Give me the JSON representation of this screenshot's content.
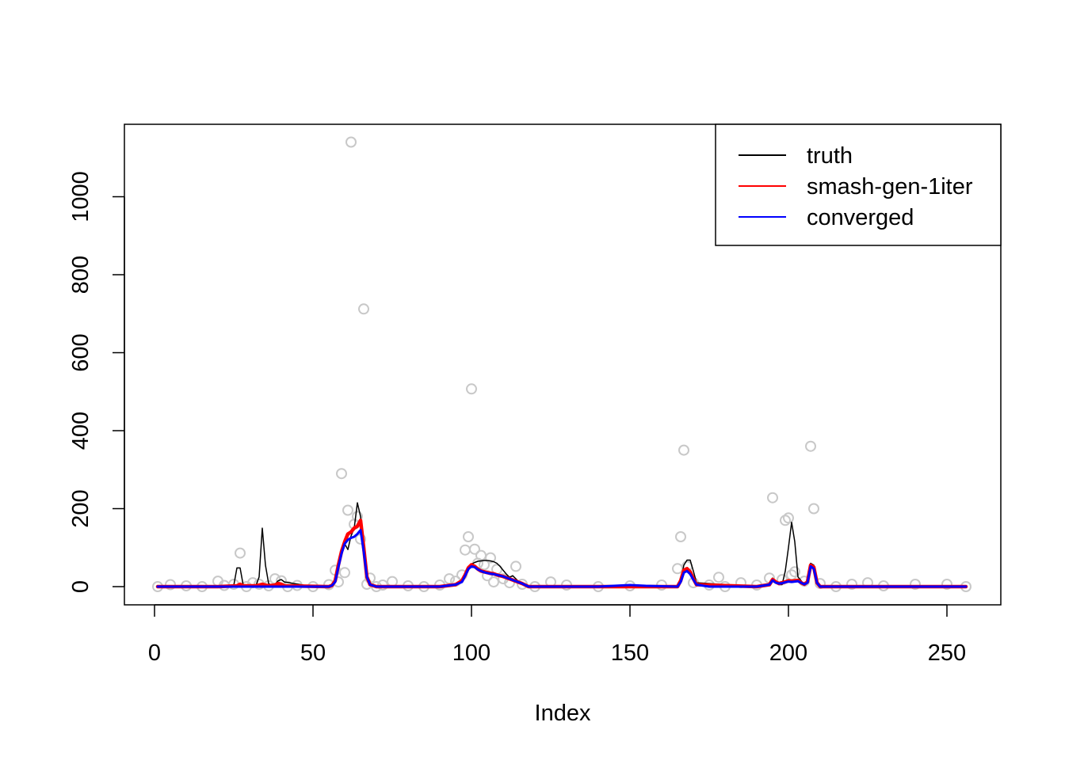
{
  "chart_data": {
    "type": "line",
    "title": "",
    "xlabel": "Index",
    "ylabel": "",
    "xlim": [
      1,
      256
    ],
    "ylim": [
      0,
      1140
    ],
    "x_ticks": [
      0,
      50,
      100,
      150,
      200,
      250
    ],
    "y_ticks": [
      0,
      200,
      400,
      600,
      800,
      1000
    ],
    "grid": false,
    "legend": {
      "position": "top-right",
      "entries": [
        {
          "label": "truth",
          "color": "#000000"
        },
        {
          "label": "smash-gen-1iter",
          "color": "#ff0000"
        },
        {
          "label": "converged",
          "color": "#0000ff"
        }
      ]
    },
    "points": {
      "name": "observations",
      "color": "#c8c8c8",
      "x": [
        1,
        5,
        10,
        15,
        20,
        22,
        25,
        27,
        29,
        31,
        33,
        36,
        38,
        40,
        42,
        45,
        50,
        55,
        57,
        58,
        59,
        60,
        61,
        62,
        63,
        64,
        65,
        66,
        67,
        68,
        70,
        72,
        75,
        80,
        85,
        90,
        93,
        95,
        97,
        98,
        99,
        100,
        101,
        102,
        103,
        104,
        105,
        106,
        107,
        108,
        110,
        112,
        114,
        116,
        120,
        125,
        130,
        140,
        150,
        160,
        165,
        166,
        167,
        168,
        170,
        175,
        178,
        180,
        185,
        190,
        194,
        195,
        198,
        199,
        200,
        201,
        202,
        205,
        207,
        208,
        210,
        215,
        220,
        225,
        230,
        240,
        250,
        256
      ],
      "y": [
        0,
        5,
        2,
        0,
        14,
        3,
        6,
        86,
        0,
        10,
        6,
        2,
        20,
        15,
        0,
        3,
        0,
        5,
        42,
        12,
        290,
        36,
        196,
        1140,
        160,
        180,
        122,
        712,
        6,
        22,
        0,
        4,
        13,
        2,
        0,
        4,
        20,
        14,
        30,
        94,
        128,
        507,
        96,
        60,
        80,
        56,
        28,
        74,
        12,
        44,
        20,
        10,
        52,
        6,
        0,
        12,
        4,
        0,
        2,
        4,
        46,
        128,
        350,
        52,
        10,
        4,
        24,
        0,
        10,
        4,
        22,
        228,
        18,
        170,
        176,
        30,
        38,
        14,
        360,
        200,
        8,
        0,
        6,
        10,
        2,
        6,
        6,
        0
      ]
    },
    "series": [
      {
        "name": "truth",
        "color": "#000000",
        "width": 1.5,
        "x": [
          1,
          24,
          25,
          26,
          27,
          28,
          32,
          33,
          34,
          35,
          36,
          37,
          38,
          39,
          40,
          41,
          50,
          55,
          56,
          57,
          58,
          59,
          60,
          61,
          62,
          63,
          64,
          65,
          66,
          67,
          68,
          70,
          90,
          95,
          97,
          98,
          99,
          100,
          101,
          102,
          103,
          104,
          105,
          106,
          107,
          108,
          109,
          110,
          111,
          112,
          113,
          114,
          115,
          116,
          118,
          165,
          166,
          167,
          168,
          169,
          170,
          171,
          190,
          194,
          195,
          196,
          197,
          198,
          199,
          200,
          201,
          202,
          203,
          205,
          206,
          207,
          208,
          209,
          210,
          256
        ],
        "y": [
          0,
          0,
          3,
          48,
          48,
          3,
          3,
          25,
          150,
          55,
          8,
          3,
          5,
          15,
          18,
          12,
          0,
          0,
          3,
          15,
          50,
          85,
          110,
          95,
          130,
          150,
          215,
          180,
          100,
          30,
          3,
          0,
          0,
          5,
          15,
          35,
          52,
          58,
          62,
          65,
          66,
          67,
          67,
          66,
          64,
          60,
          52,
          42,
          32,
          24,
          28,
          20,
          12,
          5,
          0,
          0,
          15,
          55,
          68,
          68,
          40,
          10,
          0,
          5,
          22,
          12,
          5,
          5,
          40,
          100,
          165,
          115,
          25,
          5,
          10,
          60,
          55,
          10,
          0,
          0
        ]
      },
      {
        "name": "smash-gen-1iter",
        "color": "#ff0000",
        "width": 4.5,
        "x": [
          1,
          20,
          26,
          27,
          28,
          32,
          33,
          34,
          35,
          36,
          38,
          39,
          40,
          41,
          55,
          56,
          57,
          58,
          59,
          60,
          61,
          62,
          63,
          64,
          65,
          66,
          67,
          68,
          70,
          90,
          95,
          97,
          98,
          99,
          100,
          101,
          102,
          103,
          104,
          105,
          106,
          107,
          108,
          110,
          112,
          114,
          116,
          118,
          165,
          166,
          167,
          168,
          169,
          170,
          171,
          190,
          194,
          195,
          196,
          197,
          198,
          199,
          200,
          201,
          202,
          203,
          204,
          205,
          206,
          207,
          208,
          209,
          210,
          256
        ],
        "y": [
          0,
          0,
          2,
          6,
          2,
          2,
          4,
          6,
          4,
          2,
          4,
          8,
          6,
          2,
          0,
          3,
          15,
          55,
          90,
          115,
          135,
          140,
          150,
          155,
          170,
          100,
          25,
          5,
          0,
          0,
          5,
          15,
          30,
          48,
          56,
          52,
          45,
          40,
          38,
          36,
          34,
          33,
          30,
          26,
          20,
          14,
          8,
          0,
          0,
          15,
          42,
          46,
          38,
          20,
          5,
          0,
          5,
          18,
          12,
          8,
          10,
          12,
          15,
          14,
          15,
          16,
          10,
          6,
          12,
          55,
          50,
          10,
          0,
          0
        ]
      },
      {
        "name": "converged",
        "color": "#0000ff",
        "width": 3,
        "x": [
          1,
          55,
          56,
          57,
          58,
          59,
          60,
          61,
          62,
          63,
          64,
          65,
          66,
          67,
          68,
          70,
          90,
          95,
          97,
          98,
          99,
          100,
          101,
          102,
          103,
          104,
          105,
          106,
          107,
          108,
          110,
          112,
          114,
          116,
          118,
          140,
          150,
          155,
          165,
          166,
          167,
          168,
          169,
          170,
          171,
          175,
          180,
          190,
          194,
          195,
          196,
          197,
          198,
          199,
          200,
          201,
          202,
          203,
          204,
          205,
          206,
          207,
          208,
          209,
          210,
          256
        ],
        "y": [
          0,
          0,
          3,
          12,
          50,
          85,
          110,
          120,
          125,
          128,
          135,
          145,
          90,
          25,
          5,
          0,
          0,
          5,
          12,
          28,
          45,
          52,
          50,
          44,
          40,
          37,
          35,
          33,
          32,
          30,
          26,
          20,
          14,
          8,
          0,
          0,
          4,
          2,
          0,
          12,
          36,
          40,
          32,
          18,
          5,
          0,
          0,
          0,
          5,
          16,
          10,
          8,
          9,
          11,
          13,
          12,
          13,
          14,
          10,
          6,
          10,
          52,
          46,
          10,
          0,
          0
        ]
      }
    ]
  }
}
